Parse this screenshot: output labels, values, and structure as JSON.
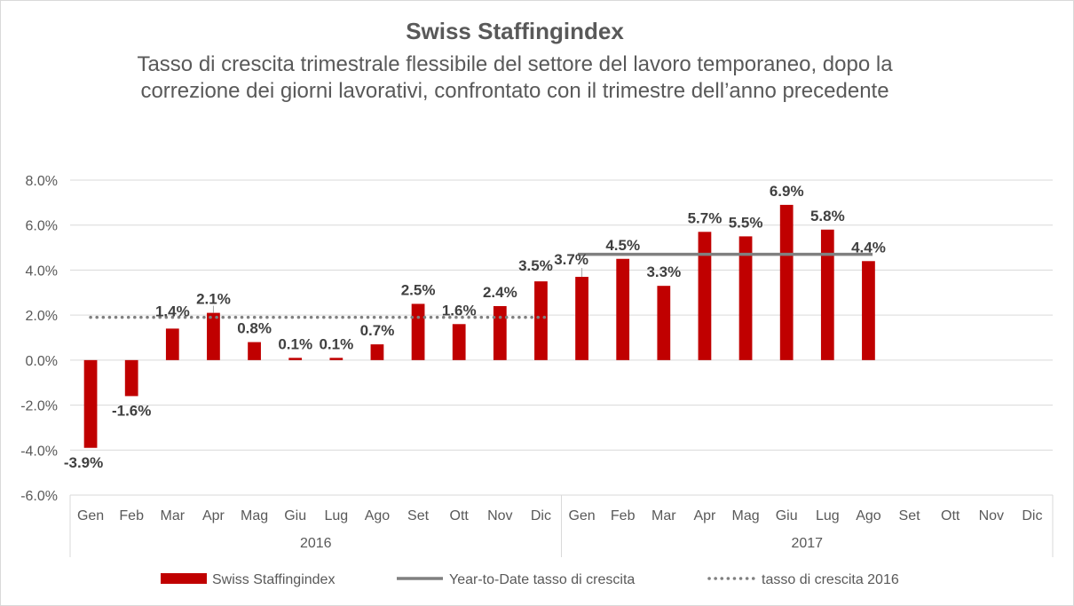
{
  "chart_data": {
    "type": "bar",
    "title": "Swiss Staffingindex",
    "subtitle": "Tasso di crescita trimestrale flessibile del settore del lavoro temporaneo, dopo la correzione dei giorni lavorativi, confrontato con il trimestre dell’anno precedente",
    "ylim": [
      -6.0,
      8.0
    ],
    "yticks": [
      -6.0,
      -4.0,
      -2.0,
      0.0,
      2.0,
      4.0,
      6.0,
      8.0
    ],
    "ytick_labels": [
      "-6.0%",
      "-4.0%",
      "-2.0%",
      "0.0%",
      "2.0%",
      "4.0%",
      "6.0%",
      "8.0%"
    ],
    "grid": true,
    "colors": {
      "bar": "#c00000",
      "ytd": "#808080",
      "rate2016": "#808080",
      "grid": "#d9d9d9"
    },
    "groups": [
      {
        "label": "2016",
        "categories": [
          "Gen",
          "Feb",
          "Mar",
          "Apr",
          "Mag",
          "Giu",
          "Lug",
          "Ago",
          "Set",
          "Ott",
          "Nov",
          "Dic"
        ]
      },
      {
        "label": "2017",
        "categories": [
          "Gen",
          "Feb",
          "Mar",
          "Apr",
          "Mag",
          "Giu",
          "Lug",
          "Ago",
          "Set",
          "Ott",
          "Nov",
          "Dic"
        ]
      }
    ],
    "series": [
      {
        "name": "Swiss Staffingindex",
        "type": "bar",
        "values": [
          -3.9,
          -1.6,
          1.4,
          2.1,
          0.8,
          0.1,
          0.1,
          0.7,
          2.5,
          1.6,
          2.4,
          3.5,
          3.7,
          4.5,
          3.3,
          5.7,
          5.5,
          6.9,
          5.8,
          4.4,
          null,
          null,
          null,
          null
        ],
        "labels": [
          "-3.9%",
          "-1.6%",
          "1.4%",
          "2.1%",
          "0.8%",
          "0.1%",
          "0.1%",
          "0.7%",
          "2.5%",
          "1.6%",
          "2.4%",
          "3.5%",
          "3.7%",
          "4.5%",
          "3.3%",
          "5.7%",
          "5.5%",
          "6.9%",
          "5.8%",
          "4.4%",
          "",
          "",
          "",
          ""
        ]
      },
      {
        "name": "Year-to-Date tasso di crescita",
        "type": "line",
        "value": 4.7,
        "from_index": 12,
        "to_index": 19
      },
      {
        "name": "tasso di crescita 2016",
        "type": "dotted-line",
        "value": 1.9,
        "from_index": 0,
        "to_index": 11
      }
    ],
    "legend_position": "bottom"
  }
}
